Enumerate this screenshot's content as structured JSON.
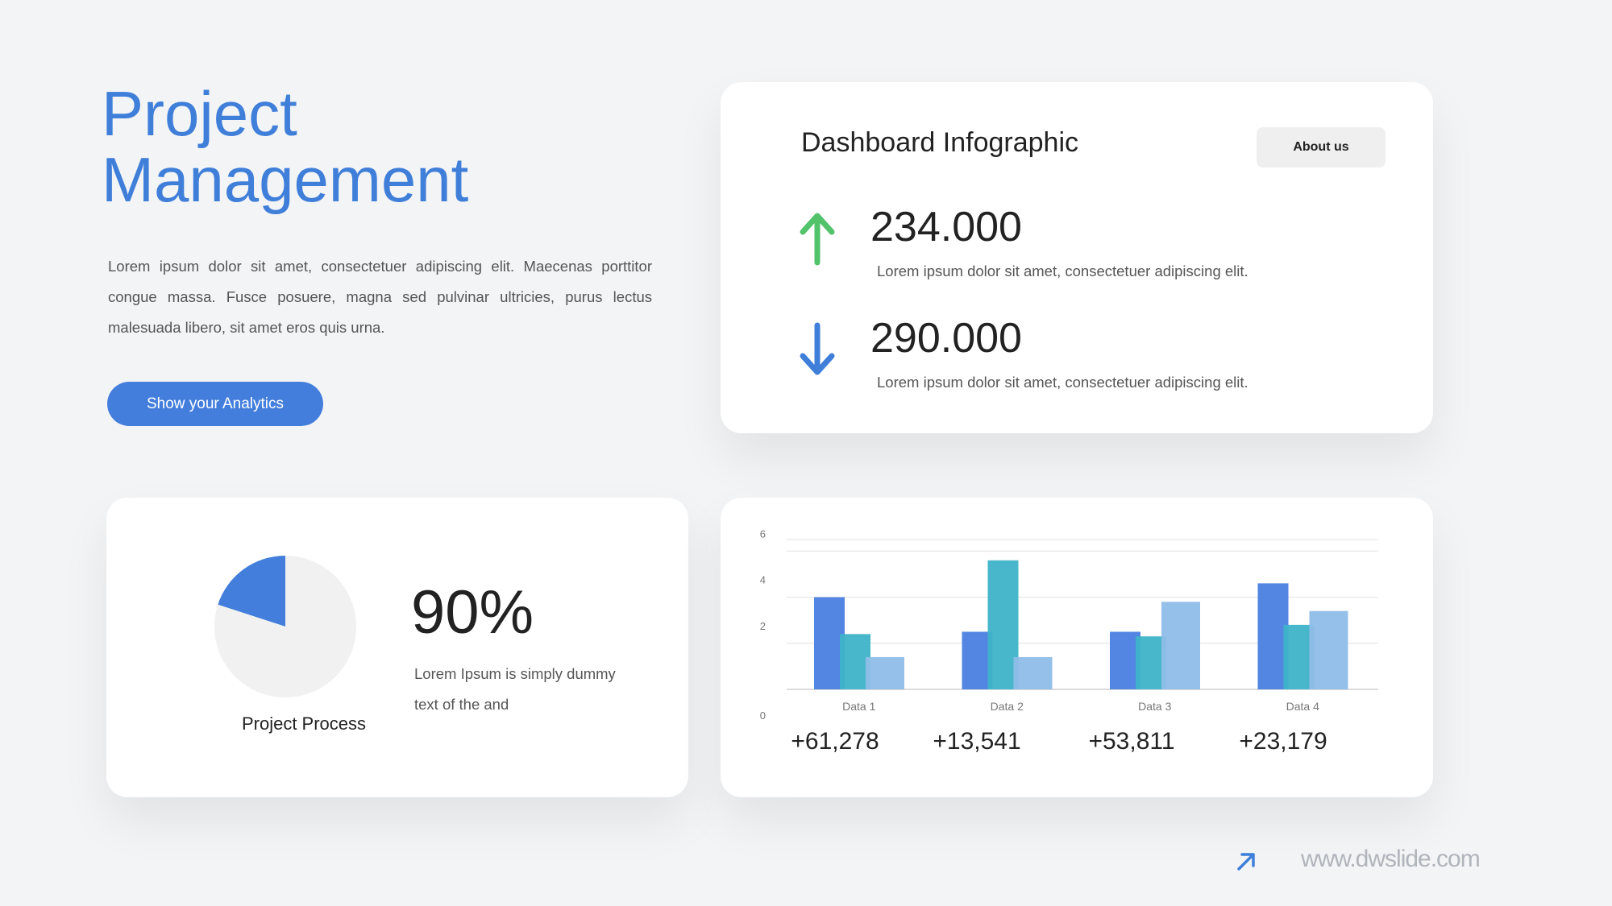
{
  "hero": {
    "title_line1": "Project",
    "title_line2": "Management",
    "description": "Lorem ipsum dolor sit amet, consectetuer adipiscing elit. Maecenas porttitor congue massa. Fusce posuere, magna sed pulvinar ultricies, purus lectus malesuada libero, sit amet eros quis urna.",
    "cta_label": "Show your Analytics"
  },
  "dashboard": {
    "title": "Dashboard Infographic",
    "about_label": "About us",
    "metrics": [
      {
        "value": "234.000",
        "description": "Lorem ipsum dolor sit amet, consectetuer adipiscing elit.",
        "icon": "arrow-up-icon",
        "color": "#52c26b"
      },
      {
        "value": "290.000",
        "description": "Lorem ipsum dolor sit amet, consectetuer adipiscing elit.",
        "icon": "arrow-down-icon",
        "color": "#3f7fd9"
      }
    ]
  },
  "project": {
    "percent": "90%",
    "label": "Project Process",
    "description": "Lorem Ipsum is simply dummy text of the and"
  },
  "chart_data": [
    {
      "type": "pie",
      "slices": [
        {
          "value": 20,
          "color": "#437edc"
        },
        {
          "value": 80,
          "color": "#f1f1f1"
        }
      ]
    },
    {
      "type": "bar",
      "categories": [
        "Data 1",
        "Data 2",
        "Data 3",
        "Data 4"
      ],
      "series": [
        {
          "values": [
            4.0,
            2.5,
            2.5,
            4.6
          ],
          "color": "#4a80e0"
        },
        {
          "values": [
            2.4,
            5.6,
            2.3,
            2.8
          ],
          "color": "#3fb3c8"
        },
        {
          "values": [
            1.4,
            1.4,
            3.8,
            3.4
          ],
          "color": "#8fbde8"
        }
      ],
      "yticks": [
        0,
        2,
        4,
        6
      ],
      "ylim": [
        0,
        6.5
      ],
      "grid": true,
      "deltas": [
        "+61,278",
        "+13,541",
        "+53,811",
        "+23,179"
      ]
    }
  ],
  "footer": {
    "url": "www.dwslide.com",
    "icon": "arrow-up-right-icon"
  }
}
